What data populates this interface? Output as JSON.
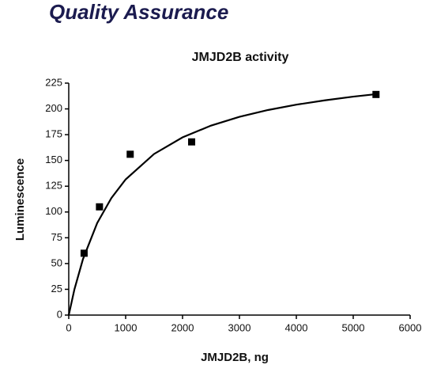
{
  "header": {
    "title": "Quality Assurance"
  },
  "chart_data": {
    "type": "scatter",
    "title": "JMJD2B activity",
    "x_label": "JMJD2B, ng",
    "y_label": "Luminescence",
    "xlim": [
      0,
      6000
    ],
    "xticks": [
      0,
      1000,
      2000,
      3000,
      4000,
      5000,
      6000
    ],
    "ylim": [
      0,
      225
    ],
    "yticks": [
      0,
      25,
      50,
      75,
      100,
      125,
      150,
      175,
      200,
      225
    ],
    "grid": false,
    "series": [
      {
        "mode": "markers",
        "color": "#000000",
        "x": [
          270,
          540,
          1080,
          2160,
          5400
        ],
        "values": [
          60,
          105,
          156,
          168,
          214
        ]
      },
      {
        "mode": "line",
        "color": "#000000",
        "x": [
          0,
          100,
          250,
          500,
          750,
          1000,
          1500,
          2000,
          2500,
          3000,
          3500,
          4000,
          4500,
          5000,
          5400
        ],
        "values": [
          0,
          25,
          54.3,
          89.3,
          113.6,
          131.6,
          156.3,
          172.4,
          183.8,
          192.3,
          198.9,
          204.1,
          208.3,
          211.9,
          214.3
        ]
      }
    ]
  }
}
